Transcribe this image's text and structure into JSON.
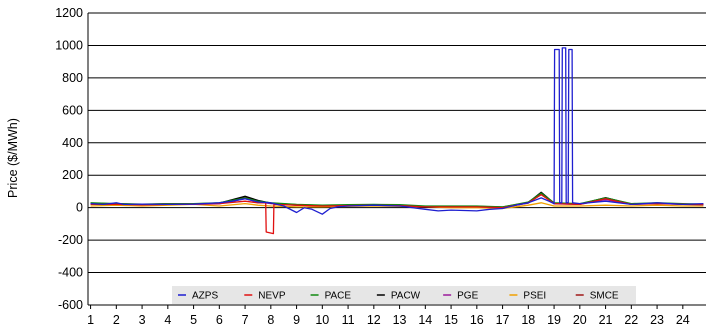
{
  "chart_data": {
    "type": "line",
    "title": "",
    "xlabel": "",
    "ylabel": "Price ($/MWh)",
    "ylim": [
      -600,
      1200
    ],
    "yticks": [
      -600,
      -400,
      -200,
      0,
      200,
      400,
      600,
      800,
      1000,
      1200
    ],
    "xlim": [
      0.9,
      24.9
    ],
    "xticks": [
      1,
      2,
      3,
      4,
      5,
      6,
      7,
      8,
      9,
      10,
      11,
      12,
      13,
      14,
      15,
      16,
      17,
      18,
      19,
      20,
      21,
      22,
      23,
      24
    ],
    "grid": "horizontal",
    "legend_position": "bottom",
    "series": [
      {
        "name": "AZPS",
        "color": "#1f1fd0",
        "points": [
          [
            1,
            25
          ],
          [
            1.5,
            20
          ],
          [
            2,
            30
          ],
          [
            2.3,
            20
          ],
          [
            3,
            22
          ],
          [
            4,
            20
          ],
          [
            5,
            22
          ],
          [
            6,
            30
          ],
          [
            6.5,
            40
          ],
          [
            7,
            55
          ],
          [
            7.5,
            35
          ],
          [
            8,
            30
          ],
          [
            8.5,
            10
          ],
          [
            9,
            -30
          ],
          [
            9.3,
            0
          ],
          [
            9.6,
            -10
          ],
          [
            10,
            -40
          ],
          [
            10.3,
            -5
          ],
          [
            10.6,
            5
          ],
          [
            11,
            10
          ],
          [
            12,
            15
          ],
          [
            13,
            10
          ],
          [
            14,
            -10
          ],
          [
            14.5,
            -20
          ],
          [
            15,
            -15
          ],
          [
            16,
            -20
          ],
          [
            16.5,
            -10
          ],
          [
            17,
            -5
          ],
          [
            17.5,
            15
          ],
          [
            18,
            30
          ],
          [
            18.5,
            60
          ],
          [
            18.8,
            40
          ],
          [
            19,
            25
          ],
          [
            19.02,
            975
          ],
          [
            19.2,
            975
          ],
          [
            19.22,
            30
          ],
          [
            19.3,
            30
          ],
          [
            19.32,
            985
          ],
          [
            19.45,
            985
          ],
          [
            19.47,
            30
          ],
          [
            19.55,
            30
          ],
          [
            19.57,
            975
          ],
          [
            19.7,
            975
          ],
          [
            19.72,
            30
          ],
          [
            20,
            25
          ],
          [
            21,
            40
          ],
          [
            22,
            20
          ],
          [
            23,
            30
          ],
          [
            24,
            20
          ],
          [
            24.8,
            25
          ]
        ]
      },
      {
        "name": "NEVP",
        "color": "#e01010",
        "points": [
          [
            1,
            20
          ],
          [
            2,
            20
          ],
          [
            3,
            18
          ],
          [
            4,
            20
          ],
          [
            5,
            22
          ],
          [
            6,
            25
          ],
          [
            7,
            40
          ],
          [
            7.5,
            30
          ],
          [
            7.8,
            30
          ],
          [
            7.82,
            -150
          ],
          [
            8.1,
            -160
          ],
          [
            8.12,
            20
          ],
          [
            9,
            15
          ],
          [
            10,
            10
          ],
          [
            11,
            12
          ],
          [
            12,
            15
          ],
          [
            13,
            12
          ],
          [
            14,
            5
          ],
          [
            15,
            5
          ],
          [
            16,
            5
          ],
          [
            17,
            0
          ],
          [
            18,
            30
          ],
          [
            18.5,
            80
          ],
          [
            19,
            25
          ],
          [
            20,
            20
          ],
          [
            21,
            55
          ],
          [
            22,
            20
          ],
          [
            23,
            25
          ],
          [
            24,
            22
          ],
          [
            24.8,
            20
          ]
        ]
      },
      {
        "name": "PACE",
        "color": "#108a10",
        "points": [
          [
            1,
            30
          ],
          [
            2,
            25
          ],
          [
            3,
            22
          ],
          [
            4,
            25
          ],
          [
            5,
            25
          ],
          [
            6,
            30
          ],
          [
            7,
            60
          ],
          [
            7.5,
            40
          ],
          [
            8,
            30
          ],
          [
            9,
            20
          ],
          [
            10,
            15
          ],
          [
            11,
            18
          ],
          [
            12,
            20
          ],
          [
            13,
            18
          ],
          [
            14,
            10
          ],
          [
            15,
            10
          ],
          [
            16,
            10
          ],
          [
            17,
            5
          ],
          [
            18,
            35
          ],
          [
            18.5,
            90
          ],
          [
            19,
            30
          ],
          [
            20,
            25
          ],
          [
            21,
            60
          ],
          [
            22,
            25
          ],
          [
            23,
            30
          ],
          [
            24,
            25
          ],
          [
            24.8,
            22
          ]
        ]
      },
      {
        "name": "PACW",
        "color": "#000000",
        "points": [
          [
            1,
            28
          ],
          [
            2,
            24
          ],
          [
            3,
            20
          ],
          [
            4,
            24
          ],
          [
            5,
            24
          ],
          [
            6,
            28
          ],
          [
            7,
            70
          ],
          [
            7.5,
            45
          ],
          [
            8,
            28
          ],
          [
            9,
            18
          ],
          [
            10,
            14
          ],
          [
            11,
            16
          ],
          [
            12,
            18
          ],
          [
            13,
            16
          ],
          [
            14,
            8
          ],
          [
            15,
            8
          ],
          [
            16,
            8
          ],
          [
            17,
            4
          ],
          [
            18,
            32
          ],
          [
            18.5,
            95
          ],
          [
            19,
            28
          ],
          [
            20,
            22
          ],
          [
            21,
            62
          ],
          [
            22,
            22
          ],
          [
            23,
            28
          ],
          [
            24,
            22
          ],
          [
            24.8,
            20
          ]
        ]
      },
      {
        "name": "PGE",
        "color": "#9b1a9b",
        "points": [
          [
            1,
            22
          ],
          [
            2,
            22
          ],
          [
            3,
            18
          ],
          [
            4,
            20
          ],
          [
            5,
            20
          ],
          [
            6,
            24
          ],
          [
            7,
            55
          ],
          [
            7.5,
            35
          ],
          [
            8,
            25
          ],
          [
            9,
            15
          ],
          [
            10,
            12
          ],
          [
            11,
            14
          ],
          [
            12,
            15
          ],
          [
            13,
            14
          ],
          [
            14,
            6
          ],
          [
            15,
            6
          ],
          [
            16,
            6
          ],
          [
            17,
            2
          ],
          [
            18,
            28
          ],
          [
            18.5,
            85
          ],
          [
            19,
            24
          ],
          [
            20,
            20
          ],
          [
            21,
            50
          ],
          [
            22,
            20
          ],
          [
            23,
            25
          ],
          [
            24,
            20
          ],
          [
            24.8,
            18
          ]
        ]
      },
      {
        "name": "PSEI",
        "color": "#f0a000",
        "points": [
          [
            1,
            10
          ],
          [
            2,
            15
          ],
          [
            3,
            10
          ],
          [
            4,
            15
          ],
          [
            5,
            20
          ],
          [
            6,
            10
          ],
          [
            7,
            25
          ],
          [
            7.5,
            15
          ],
          [
            8,
            10
          ],
          [
            9,
            5
          ],
          [
            10,
            5
          ],
          [
            11,
            8
          ],
          [
            12,
            10
          ],
          [
            13,
            8
          ],
          [
            14,
            5
          ],
          [
            15,
            0
          ],
          [
            16,
            0
          ],
          [
            17,
            -5
          ],
          [
            18,
            15
          ],
          [
            18.5,
            30
          ],
          [
            19,
            10
          ],
          [
            20,
            10
          ],
          [
            21,
            15
          ],
          [
            22,
            10
          ],
          [
            23,
            15
          ],
          [
            24,
            10
          ],
          [
            24.8,
            10
          ]
        ]
      },
      {
        "name": "SMCE",
        "color": "#a01818",
        "points": [
          [
            1,
            24
          ],
          [
            2,
            22
          ],
          [
            3,
            20
          ],
          [
            4,
            22
          ],
          [
            5,
            22
          ],
          [
            6,
            26
          ],
          [
            7,
            65
          ],
          [
            7.5,
            40
          ],
          [
            8,
            26
          ],
          [
            9,
            16
          ],
          [
            10,
            12
          ],
          [
            11,
            15
          ],
          [
            12,
            17
          ],
          [
            13,
            15
          ],
          [
            14,
            7
          ],
          [
            15,
            7
          ],
          [
            16,
            7
          ],
          [
            17,
            3
          ],
          [
            18,
            30
          ],
          [
            18.5,
            88
          ],
          [
            19,
            26
          ],
          [
            20,
            21
          ],
          [
            21,
            58
          ],
          [
            22,
            21
          ],
          [
            23,
            27
          ],
          [
            24,
            21
          ],
          [
            24.8,
            19
          ]
        ]
      }
    ]
  }
}
